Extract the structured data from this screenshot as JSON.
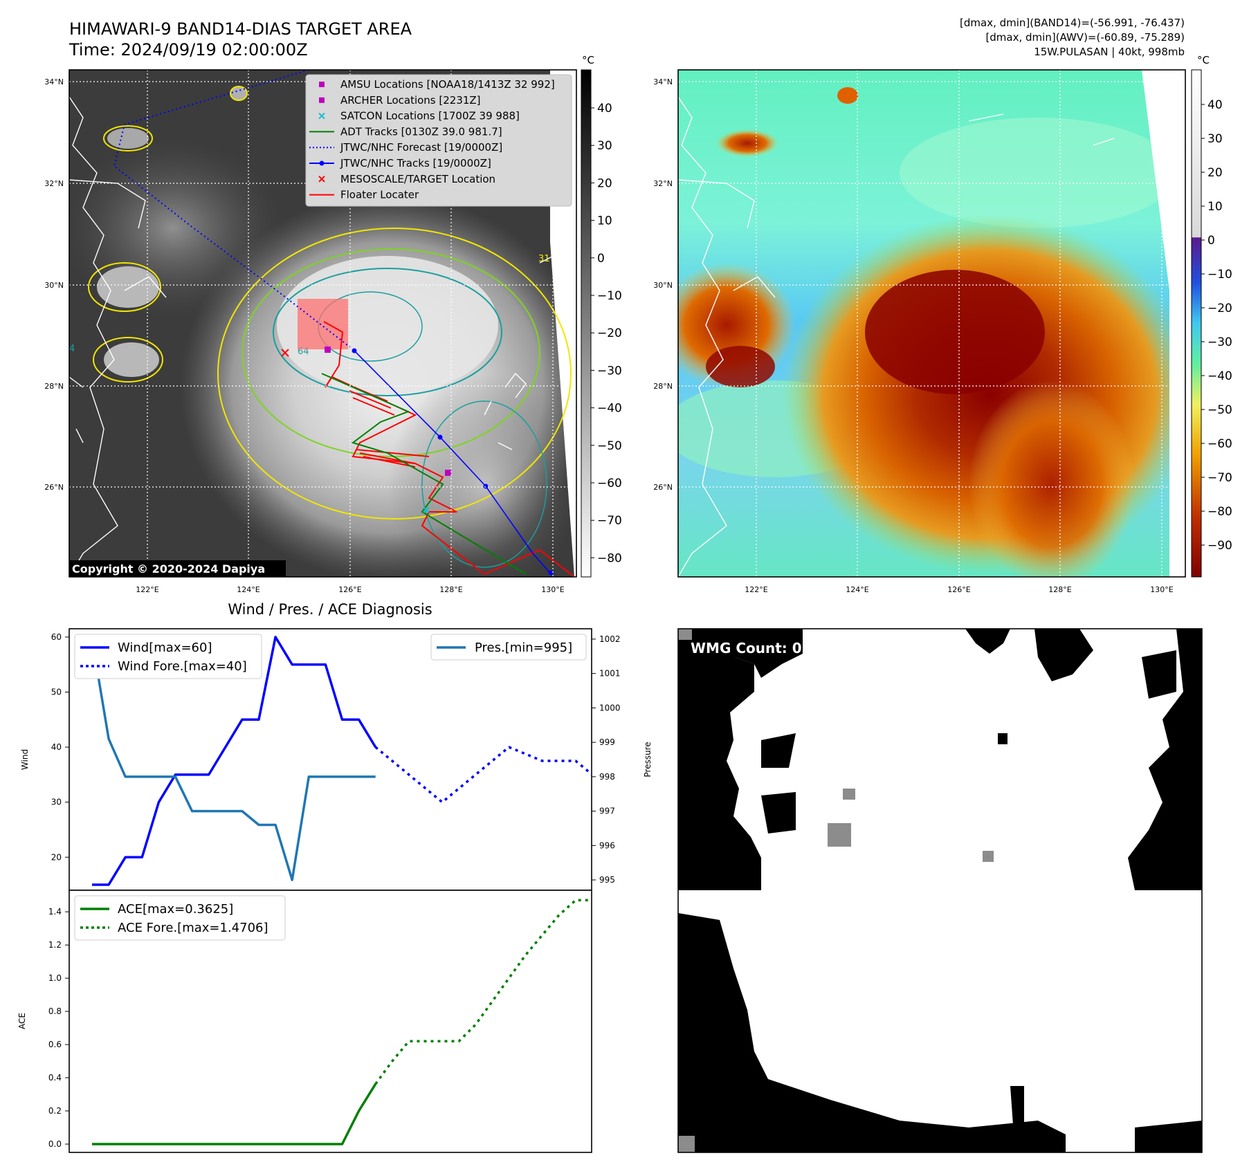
{
  "header": {
    "title_line1": "HIMAWARI-9 BAND14-DIAS TARGET AREA",
    "title_line2": "Time: 2024/09/19 02:00:00Z",
    "info_line1": "[dmax, dmin](BAND14)=(-56.991, -76.437)",
    "info_line2": "[dmax, dmin](AWV)=(-60.89, -75.289)",
    "info_line3": "15W.PULASAN | 40kt, 998mb"
  },
  "map_ir": {
    "lat_labels": [
      "34°N",
      "32°N",
      "30°N",
      "28°N",
      "26°N"
    ],
    "lon_labels": [
      "122°E",
      "124°E",
      "126°E",
      "128°E",
      "130°E"
    ],
    "colorbar_unit": "°C",
    "colorbar_ticks": [
      "40",
      "30",
      "20",
      "10",
      "0",
      "−10",
      "−20",
      "−30",
      "−40",
      "−50",
      "−60",
      "−70",
      "−80"
    ],
    "copyright": "Copyright © 2020-2024 Dapiya",
    "contour_labels": [
      "31",
      "64",
      "4"
    ],
    "legend": [
      {
        "label": "AMSU Locations [NOAA18/1413Z 32 992]",
        "marker": "square",
        "color": "#bf00bf"
      },
      {
        "label": "ARCHER Locations [2231Z]",
        "marker": "square",
        "color": "#bf00bf"
      },
      {
        "label": "SATCON Locations [1700Z 39 988]",
        "marker": "x",
        "color": "#17becf"
      },
      {
        "label": "ADT Tracks [0130Z 39.0 981.7]",
        "marker": "line",
        "color": "#008000"
      },
      {
        "label": "JTWC/NHC Forecast [19/0000Z]",
        "marker": "dotted",
        "color": "#0000ff"
      },
      {
        "label": "JTWC/NHC Tracks [19/0000Z]",
        "marker": "line-dot",
        "color": "#0000ff"
      },
      {
        "label": "MESOSCALE/TARGET Location",
        "marker": "x",
        "color": "#ff0000"
      },
      {
        "label": "Floater Locater",
        "marker": "line",
        "color": "#ff0000"
      }
    ]
  },
  "map_awv": {
    "lat_labels": [
      "34°N",
      "32°N",
      "30°N",
      "28°N",
      "26°N"
    ],
    "lon_labels": [
      "122°E",
      "124°E",
      "126°E",
      "128°E",
      "130°E"
    ],
    "colorbar_unit": "°C",
    "colorbar_ticks": [
      "40",
      "30",
      "20",
      "10",
      "0",
      "−10",
      "−20",
      "−30",
      "−40",
      "−50",
      "−60",
      "−70",
      "−80",
      "−90"
    ]
  },
  "wmg": {
    "label": "WMG Count: 0"
  },
  "colors": {
    "wind": "#0000ff",
    "pressure": "#1f77b4",
    "ace": "#008000",
    "legend_bg": "#d8d8d8"
  },
  "chart_data": [
    {
      "type": "line",
      "title": "Wind / Pres. / ACE Diagnosis",
      "ylabel": "Wind",
      "y2label": "Pressure",
      "ylim": [
        14,
        61.5
      ],
      "y2lim": [
        994.7,
        1002.3
      ],
      "yticks": [
        20,
        30,
        40,
        50,
        60
      ],
      "y2ticks": [
        995,
        996,
        997,
        998,
        999,
        1000,
        1001,
        1002
      ],
      "series": [
        {
          "name": "Wind[max=60]",
          "axis": "left",
          "style": "solid",
          "x": [
            0,
            1,
            2,
            3,
            4,
            5,
            6,
            7,
            8,
            9,
            10,
            11,
            12,
            13,
            14,
            15,
            16,
            17
          ],
          "values": [
            15,
            15,
            20,
            20,
            30,
            35,
            35,
            35,
            40,
            45,
            45,
            60,
            55,
            55,
            55,
            45,
            45,
            40
          ]
        },
        {
          "name": "Wind Fore.[max=40]",
          "axis": "left",
          "style": "dotted",
          "x": [
            17,
            18,
            19,
            20,
            21,
            22,
            23,
            24,
            25,
            26,
            27,
            28,
            29,
            30
          ],
          "values": [
            40,
            37.5,
            35,
            32.5,
            30,
            32.5,
            35,
            37.5,
            40,
            38.75,
            37.5,
            37.5,
            37.5,
            35
          ]
        },
        {
          "name": "Pres.[min=995]",
          "axis": "right",
          "style": "solid",
          "x": [
            0,
            1,
            2,
            3,
            4,
            5,
            6,
            7,
            8,
            9,
            10,
            11,
            12,
            13,
            14,
            15,
            16,
            17
          ],
          "values": [
            1002,
            999.1,
            998,
            998,
            998,
            998,
            997,
            997,
            997,
            997,
            996.6,
            996.6,
            995,
            998,
            998,
            998,
            998,
            998
          ]
        }
      ]
    },
    {
      "type": "line",
      "ylabel": "ACE",
      "ylim": [
        -0.05,
        1.53
      ],
      "yticks": [
        0.0,
        0.2,
        0.4,
        0.6,
        0.8,
        1.0,
        1.2,
        1.4
      ],
      "ytick_labels": [
        "0.0",
        "0.2",
        "0.4",
        "0.6",
        "0.8",
        "1.0",
        "1.2",
        "1.4"
      ],
      "series": [
        {
          "name": "ACE[max=0.3625]",
          "style": "solid",
          "x": [
            0,
            1,
            2,
            3,
            4,
            5,
            6,
            7,
            8,
            9,
            10,
            11,
            12,
            13,
            14,
            15,
            16,
            17
          ],
          "values": [
            0,
            0,
            0,
            0,
            0,
            0,
            0,
            0,
            0,
            0,
            0,
            0,
            0,
            0,
            0,
            0,
            0.2,
            0.3625
          ]
        },
        {
          "name": "ACE Fore.[max=1.4706]",
          "style": "dotted",
          "x": [
            17,
            18,
            19,
            20,
            21,
            22,
            23,
            24,
            25,
            26,
            27,
            28,
            29,
            30
          ],
          "values": [
            0.3625,
            0.5,
            0.62,
            0.62,
            0.62,
            0.62,
            0.72,
            0.86,
            1.0,
            1.14,
            1.26,
            1.38,
            1.47,
            1.47
          ]
        }
      ]
    }
  ]
}
